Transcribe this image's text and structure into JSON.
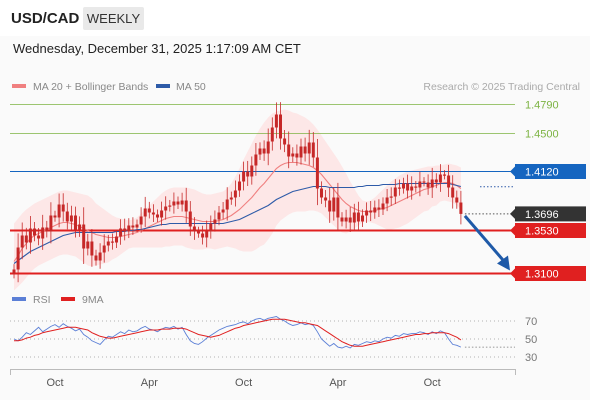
{
  "header": {
    "symbol": "USD/CAD",
    "timeframe": "WEEKLY",
    "datetime": "Wednesday, December 31, 2025 1:17:09 AM CET"
  },
  "legend": {
    "ma20_label": "MA 20 + Bollinger Bands",
    "ma50_label": "MA 50",
    "credit": "Research © 2025 Trading Central",
    "rsi_label": "RSI",
    "rsi_ma_label": "9MA"
  },
  "colors": {
    "ma20": "#f08080",
    "ma50": "#2e5ba8",
    "bollinger_fill": "#fde4e4",
    "candle": "#c62828",
    "resistance": "#7cb342",
    "pivot": "#1565c0",
    "support": "#e02020",
    "current": "#333333",
    "arrow": "#1f5aa8",
    "rsi": "#5b7fd6",
    "rsi_ma": "#e02020"
  },
  "chart_data": [
    {
      "type": "candlestick",
      "title": "",
      "x_tick_labels": [
        "Oct",
        "Apr",
        "Oct",
        "Apr",
        "Oct"
      ],
      "ylim": [
        1.3055,
        1.4835
      ],
      "levels": [
        {
          "label": "1.4790",
          "value": 1.479,
          "kind": "resistance"
        },
        {
          "label": "1.4500",
          "value": 1.45,
          "kind": "resistance"
        },
        {
          "label": "1.4120",
          "value": 1.412,
          "kind": "pivot"
        },
        {
          "label": "1.3696",
          "value": 1.3696,
          "kind": "current"
        },
        {
          "label": "1.3530",
          "value": 1.353,
          "kind": "support"
        },
        {
          "label": "1.3100",
          "value": 1.31,
          "kind": "support"
        }
      ],
      "close": [
        1.314,
        1.336,
        1.348,
        1.341,
        1.355,
        1.348,
        1.345,
        1.356,
        1.352,
        1.368,
        1.366,
        1.379,
        1.372,
        1.362,
        1.368,
        1.354,
        1.359,
        1.335,
        1.342,
        1.328,
        1.323,
        1.331,
        1.338,
        1.342,
        1.341,
        1.347,
        1.355,
        1.352,
        1.358,
        1.356,
        1.359,
        1.367,
        1.375,
        1.371,
        1.369,
        1.366,
        1.373,
        1.377,
        1.378,
        1.382,
        1.379,
        1.383,
        1.372,
        1.357,
        1.352,
        1.35,
        1.346,
        1.352,
        1.36,
        1.364,
        1.371,
        1.374,
        1.384,
        1.386,
        1.393,
        1.402,
        1.412,
        1.407,
        1.418,
        1.429,
        1.435,
        1.43,
        1.442,
        1.456,
        1.469,
        1.445,
        1.439,
        1.427,
        1.43,
        1.426,
        1.437,
        1.43,
        1.441,
        1.426,
        1.395,
        1.386,
        1.383,
        1.372,
        1.386,
        1.366,
        1.362,
        1.366,
        1.361,
        1.371,
        1.362,
        1.368,
        1.373,
        1.371,
        1.376,
        1.374,
        1.38,
        1.386,
        1.387,
        1.396,
        1.395,
        1.4,
        1.393,
        1.397,
        1.396,
        1.402,
        1.401,
        1.396,
        1.404,
        1.401,
        1.409,
        1.408,
        1.396,
        1.386,
        1.381,
        1.3696
      ],
      "ma20": [
        1.322,
        1.328,
        1.335,
        1.34,
        1.345,
        1.348,
        1.35,
        1.352,
        1.354,
        1.356,
        1.358,
        1.36,
        1.361,
        1.361,
        1.36,
        1.359,
        1.357,
        1.355,
        1.353,
        1.351,
        1.349,
        1.348,
        1.347,
        1.346,
        1.346,
        1.346,
        1.347,
        1.348,
        1.349,
        1.35,
        1.351,
        1.353,
        1.355,
        1.357,
        1.359,
        1.361,
        1.363,
        1.365,
        1.366,
        1.367,
        1.367,
        1.367,
        1.366,
        1.365,
        1.364,
        1.363,
        1.362,
        1.362,
        1.362,
        1.362,
        1.363,
        1.364,
        1.366,
        1.368,
        1.371,
        1.374,
        1.378,
        1.382,
        1.386,
        1.391,
        1.396,
        1.4,
        1.405,
        1.41,
        1.415,
        1.418,
        1.42,
        1.421,
        1.421,
        1.421,
        1.42,
        1.419,
        1.418,
        1.416,
        1.413,
        1.409,
        1.404,
        1.399,
        1.394,
        1.389,
        1.384,
        1.38,
        1.377,
        1.375,
        1.373,
        1.372,
        1.372,
        1.372,
        1.373,
        1.374,
        1.375,
        1.376,
        1.378,
        1.38,
        1.382,
        1.384,
        1.386,
        1.388,
        1.39,
        1.392,
        1.394,
        1.395,
        1.397,
        1.398,
        1.4,
        1.401,
        1.401,
        1.4,
        1.398,
        1.395
      ],
      "ma50": [
        1.32,
        1.323,
        1.326,
        1.329,
        1.332,
        1.334,
        1.336,
        1.338,
        1.34,
        1.342,
        1.344,
        1.346,
        1.348,
        1.349,
        1.35,
        1.351,
        1.351,
        1.351,
        1.351,
        1.351,
        1.351,
        1.351,
        1.351,
        1.351,
        1.351,
        1.352,
        1.352,
        1.352,
        1.353,
        1.353,
        1.354,
        1.354,
        1.355,
        1.356,
        1.357,
        1.358,
        1.359,
        1.359,
        1.36,
        1.36,
        1.36,
        1.36,
        1.36,
        1.36,
        1.36,
        1.36,
        1.36,
        1.36,
        1.36,
        1.36,
        1.36,
        1.36,
        1.361,
        1.362,
        1.363,
        1.364,
        1.366,
        1.368,
        1.37,
        1.372,
        1.374,
        1.376,
        1.378,
        1.381,
        1.384,
        1.386,
        1.388,
        1.39,
        1.392,
        1.393,
        1.394,
        1.395,
        1.396,
        1.397,
        1.397,
        1.397,
        1.397,
        1.396,
        1.396,
        1.396,
        1.396,
        1.396,
        1.396,
        1.396,
        1.397,
        1.397,
        1.398,
        1.398,
        1.398,
        1.398,
        1.399,
        1.399,
        1.399,
        1.399,
        1.4,
        1.4,
        1.4,
        1.4,
        1.4,
        1.4,
        1.4,
        1.4,
        1.4,
        1.4,
        1.4,
        1.4,
        1.4,
        1.399,
        1.398,
        1.397
      ],
      "bb_upper": [
        1.36,
        1.365,
        1.37,
        1.374,
        1.377,
        1.38,
        1.382,
        1.384,
        1.386,
        1.388,
        1.39,
        1.392,
        1.393,
        1.393,
        1.392,
        1.391,
        1.39,
        1.389,
        1.388,
        1.385,
        1.38,
        1.377,
        1.374,
        1.371,
        1.368,
        1.366,
        1.365,
        1.364,
        1.363,
        1.364,
        1.366,
        1.37,
        1.374,
        1.378,
        1.382,
        1.386,
        1.39,
        1.393,
        1.395,
        1.396,
        1.396,
        1.396,
        1.396,
        1.395,
        1.394,
        1.392,
        1.39,
        1.389,
        1.389,
        1.39,
        1.391,
        1.392,
        1.395,
        1.4,
        1.407,
        1.415,
        1.424,
        1.432,
        1.44,
        1.448,
        1.455,
        1.461,
        1.466,
        1.47,
        1.472,
        1.473,
        1.474,
        1.473,
        1.471,
        1.47,
        1.468,
        1.466,
        1.463,
        1.459,
        1.454,
        1.448,
        1.442,
        1.436,
        1.43,
        1.424,
        1.417,
        1.41,
        1.402,
        1.395,
        1.388,
        1.383,
        1.382,
        1.383,
        1.386,
        1.39,
        1.394,
        1.398,
        1.402,
        1.405,
        1.408,
        1.41,
        1.412,
        1.413,
        1.414,
        1.415,
        1.416,
        1.417,
        1.417,
        1.418,
        1.418,
        1.419,
        1.42,
        1.419,
        1.418,
        1.416
      ],
      "bb_lower": [
        1.293,
        1.297,
        1.301,
        1.306,
        1.311,
        1.315,
        1.318,
        1.32,
        1.322,
        1.324,
        1.326,
        1.328,
        1.329,
        1.329,
        1.328,
        1.327,
        1.324,
        1.321,
        1.318,
        1.317,
        1.318,
        1.319,
        1.32,
        1.321,
        1.324,
        1.326,
        1.329,
        1.332,
        1.335,
        1.336,
        1.336,
        1.336,
        1.336,
        1.336,
        1.336,
        1.336,
        1.336,
        1.337,
        1.337,
        1.338,
        1.338,
        1.338,
        1.336,
        1.335,
        1.334,
        1.334,
        1.334,
        1.335,
        1.335,
        1.334,
        1.335,
        1.336,
        1.337,
        1.336,
        1.335,
        1.333,
        1.332,
        1.332,
        1.332,
        1.334,
        1.337,
        1.339,
        1.344,
        1.35,
        1.358,
        1.363,
        1.366,
        1.369,
        1.371,
        1.372,
        1.372,
        1.372,
        1.373,
        1.373,
        1.372,
        1.37,
        1.366,
        1.362,
        1.358,
        1.354,
        1.351,
        1.35,
        1.352,
        1.355,
        1.358,
        1.361,
        1.362,
        1.361,
        1.36,
        1.358,
        1.356,
        1.354,
        1.354,
        1.355,
        1.356,
        1.358,
        1.36,
        1.363,
        1.366,
        1.369,
        1.372,
        1.373,
        1.377,
        1.378,
        1.382,
        1.383,
        1.382,
        1.381,
        1.378,
        1.374
      ]
    },
    {
      "type": "line",
      "title": "",
      "y_ticks": [
        70,
        50,
        30
      ],
      "ylim": [
        20,
        80
      ],
      "series": [
        {
          "name": "RSI",
          "values": [
            50,
            48,
            52,
            57,
            55,
            59,
            63,
            58,
            61,
            64,
            66,
            63,
            67,
            64,
            62,
            59,
            61,
            55,
            52,
            48,
            46,
            44,
            49,
            53,
            52,
            55,
            58,
            56,
            60,
            58,
            59,
            62,
            64,
            61,
            60,
            58,
            61,
            63,
            62,
            64,
            61,
            63,
            55,
            48,
            45,
            44,
            47,
            51,
            54,
            57,
            60,
            62,
            64,
            65,
            66,
            68,
            69,
            67,
            70,
            72,
            73,
            71,
            73,
            74,
            75,
            72,
            70,
            67,
            65,
            66,
            68,
            66,
            67,
            65,
            58,
            50,
            46,
            42,
            45,
            41,
            40,
            42,
            40,
            44,
            43,
            45,
            47,
            46,
            48,
            47,
            50,
            52,
            51,
            54,
            53,
            56,
            55,
            56,
            56,
            58,
            57,
            55,
            58,
            56,
            59,
            57,
            50,
            44,
            43,
            41
          ]
        },
        {
          "name": "9MA",
          "values": [
            48,
            48,
            49,
            51,
            52,
            54,
            55,
            57,
            58,
            59,
            60,
            61,
            62,
            63,
            63,
            63,
            62,
            61,
            60,
            57,
            55,
            53,
            52,
            51,
            51,
            52,
            53,
            54,
            55,
            56,
            57,
            58,
            59,
            60,
            60,
            60,
            61,
            61,
            61,
            62,
            62,
            62,
            61,
            59,
            57,
            55,
            54,
            53,
            52,
            53,
            54,
            56,
            58,
            60,
            62,
            63,
            65,
            66,
            67,
            68,
            69,
            70,
            71,
            72,
            72,
            72,
            72,
            71,
            70,
            69,
            68,
            68,
            67,
            66,
            65,
            62,
            59,
            56,
            53,
            50,
            47,
            45,
            43,
            42,
            42,
            42,
            43,
            44,
            45,
            46,
            47,
            48,
            49,
            50,
            51,
            52,
            53,
            54,
            55,
            55,
            56,
            56,
            57,
            57,
            57,
            57,
            56,
            54,
            52,
            49
          ]
        }
      ]
    }
  ]
}
